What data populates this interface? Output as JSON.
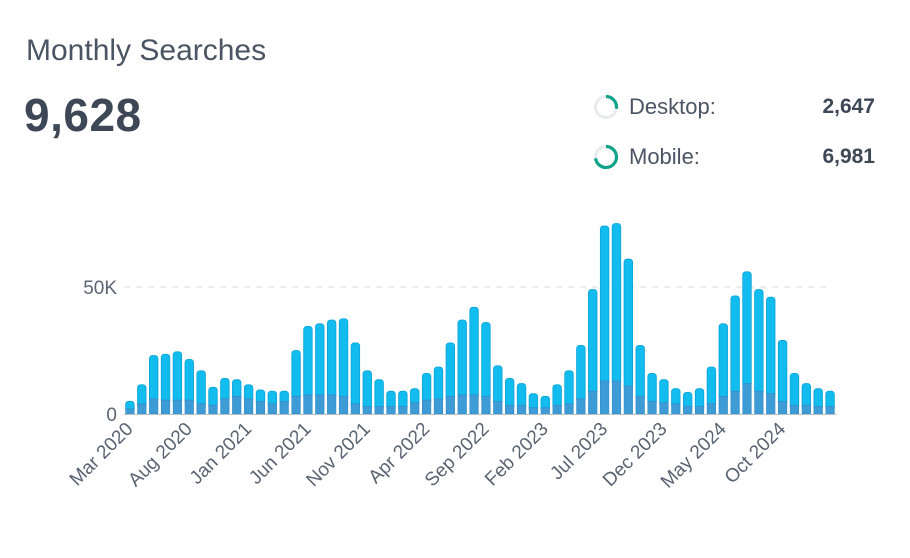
{
  "header": {
    "title": "Monthly Searches",
    "total": "9,628"
  },
  "legend": [
    {
      "label": "Desktop:",
      "value": "2,647",
      "share": 0.275,
      "color": "#0fa38a"
    },
    {
      "label": "Mobile:",
      "value": "6,981",
      "share": 0.725,
      "color": "#0fa38a"
    }
  ],
  "chart_data": {
    "type": "bar",
    "stacked": true,
    "ylim": [
      0,
      80000
    ],
    "y_ticks": [
      {
        "value": 0,
        "label": "0"
      },
      {
        "value": 50000,
        "label": "50K"
      }
    ],
    "grid": "dashed line at 50K",
    "x": [
      "Mar 2020",
      "Apr 2020",
      "May 2020",
      "Jun 2020",
      "Jul 2020",
      "Aug 2020",
      "Sep 2020",
      "Oct 2020",
      "Nov 2020",
      "Dec 2020",
      "Jan 2021",
      "Feb 2021",
      "Mar 2021",
      "Apr 2021",
      "May 2021",
      "Jun 2021",
      "Jul 2021",
      "Aug 2021",
      "Sep 2021",
      "Oct 2021",
      "Nov 2021",
      "Dec 2021",
      "Jan 2022",
      "Feb 2022",
      "Mar 2022",
      "Apr 2022",
      "May 2022",
      "Jun 2022",
      "Jul 2022",
      "Aug 2022",
      "Sep 2022",
      "Oct 2022",
      "Nov 2022",
      "Dec 2022",
      "Jan 2023",
      "Feb 2023",
      "Mar 2023",
      "Apr 2023",
      "May 2023",
      "Jun 2023",
      "Jul 2023",
      "Aug 2023",
      "Sep 2023",
      "Oct 2023",
      "Nov 2023",
      "Dec 2023",
      "Jan 2024",
      "Feb 2024",
      "Mar 2024",
      "Apr 2024",
      "May 2024",
      "Jun 2024",
      "Jul 2024",
      "Aug 2024",
      "Sep 2024",
      "Oct 2024",
      "Nov 2024",
      "Dec 2024",
      "Jan 2025",
      "Feb 2025"
    ],
    "x_tick_labels": [
      "Mar 2020",
      "Aug 2020",
      "Jan 2021",
      "Jun 2021",
      "Nov 2021",
      "Apr 2022",
      "Sep 2022",
      "Feb 2023",
      "Jul 2023",
      "Dec 2023",
      "May 2024",
      "Oct 2024"
    ],
    "series": [
      {
        "values": [
          2000,
          4000,
          6000,
          5500,
          5500,
          5500,
          4000,
          3500,
          6000,
          7000,
          6000,
          5000,
          4000,
          5000,
          7000,
          7500,
          7500,
          7500,
          7000,
          4000,
          3000,
          3000,
          3000,
          3000,
          4500,
          5500,
          6000,
          7000,
          7500,
          7500,
          7000,
          5000,
          3500,
          3500,
          2500,
          2500,
          3500,
          4000,
          6000,
          9000,
          13000,
          13000,
          11000,
          7000,
          5000,
          4500,
          4000,
          3000,
          3000,
          4000,
          7000,
          9000,
          12000,
          9000,
          8000,
          5000,
          3500,
          3500,
          3000,
          3000
        ],
        "color": "#3d9bd6"
      },
      {
        "values": [
          3000,
          7500,
          17000,
          18000,
          19000,
          16000,
          13000,
          7000,
          8000,
          6500,
          5500,
          4500,
          5000,
          4000,
          18000,
          27000,
          28000,
          29500,
          30500,
          24000,
          14000,
          10500,
          6000,
          6000,
          5500,
          10500,
          12500,
          21000,
          29500,
          34500,
          29000,
          14000,
          10500,
          8500,
          5500,
          4500,
          8000,
          13000,
          21000,
          40000,
          61000,
          62000,
          50000,
          20000,
          11000,
          9000,
          6000,
          5500,
          7000,
          14500,
          28500,
          37500,
          44000,
          40000,
          38000,
          24000,
          12500,
          8500,
          7000,
          6000
        ],
        "color": "#13bcee"
      }
    ]
  }
}
